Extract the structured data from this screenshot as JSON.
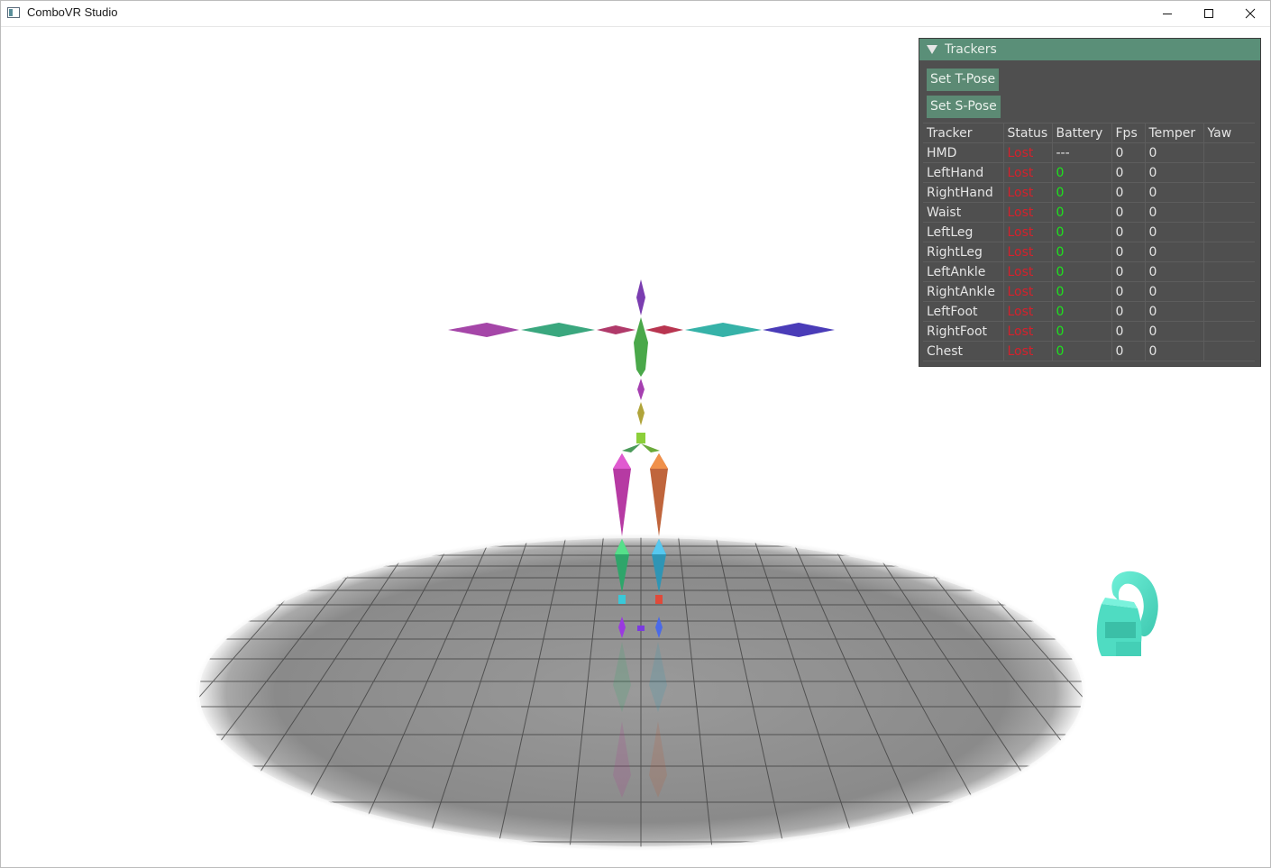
{
  "window": {
    "title": "ComboVR Studio",
    "controls": {
      "minimize_icon": "minimize-icon",
      "maximize_icon": "maximize-icon",
      "close_icon": "close-icon"
    }
  },
  "panel": {
    "title": "Trackers",
    "buttons": {
      "tpose": "Set T-Pose",
      "spose": "Set S-Pose"
    },
    "columns": [
      "Tracker",
      "Status",
      "Battery",
      "Fps",
      "Temper",
      "Yaw"
    ],
    "rows": [
      {
        "name": "HMD",
        "status": "Lost",
        "battery": "---",
        "fps": "0",
        "temper": "0",
        "yaw": ""
      },
      {
        "name": "LeftHand",
        "status": "Lost",
        "battery": "0",
        "fps": "0",
        "temper": "0",
        "yaw": ""
      },
      {
        "name": "RightHand",
        "status": "Lost",
        "battery": "0",
        "fps": "0",
        "temper": "0",
        "yaw": ""
      },
      {
        "name": "Waist",
        "status": "Lost",
        "battery": "0",
        "fps": "0",
        "temper": "0",
        "yaw": ""
      },
      {
        "name": "LeftLeg",
        "status": "Lost",
        "battery": "0",
        "fps": "0",
        "temper": "0",
        "yaw": ""
      },
      {
        "name": "RightLeg",
        "status": "Lost",
        "battery": "0",
        "fps": "0",
        "temper": "0",
        "yaw": ""
      },
      {
        "name": "LeftAnkle",
        "status": "Lost",
        "battery": "0",
        "fps": "0",
        "temper": "0",
        "yaw": ""
      },
      {
        "name": "RightAnkle",
        "status": "Lost",
        "battery": "0",
        "fps": "0",
        "temper": "0",
        "yaw": ""
      },
      {
        "name": "LeftFoot",
        "status": "Lost",
        "battery": "0",
        "fps": "0",
        "temper": "0",
        "yaw": ""
      },
      {
        "name": "RightFoot",
        "status": "Lost",
        "battery": "0",
        "fps": "0",
        "temper": "0",
        "yaw": ""
      },
      {
        "name": "Chest",
        "status": "Lost",
        "battery": "0",
        "fps": "0",
        "temper": "0",
        "yaw": ""
      }
    ]
  },
  "colors": {
    "panel_header": "#5a8f78",
    "panel_bg": "#4f4f4f",
    "button_bg": "#5c8a74",
    "status_lost": "#d5212c",
    "battery_ok": "#1fe01f",
    "floor": "#8a8a8a",
    "hmd_model": "#4fe0c4"
  },
  "scene": {
    "objects": [
      "skeleton-model",
      "floor-grid",
      "hmd-headset-model"
    ]
  }
}
